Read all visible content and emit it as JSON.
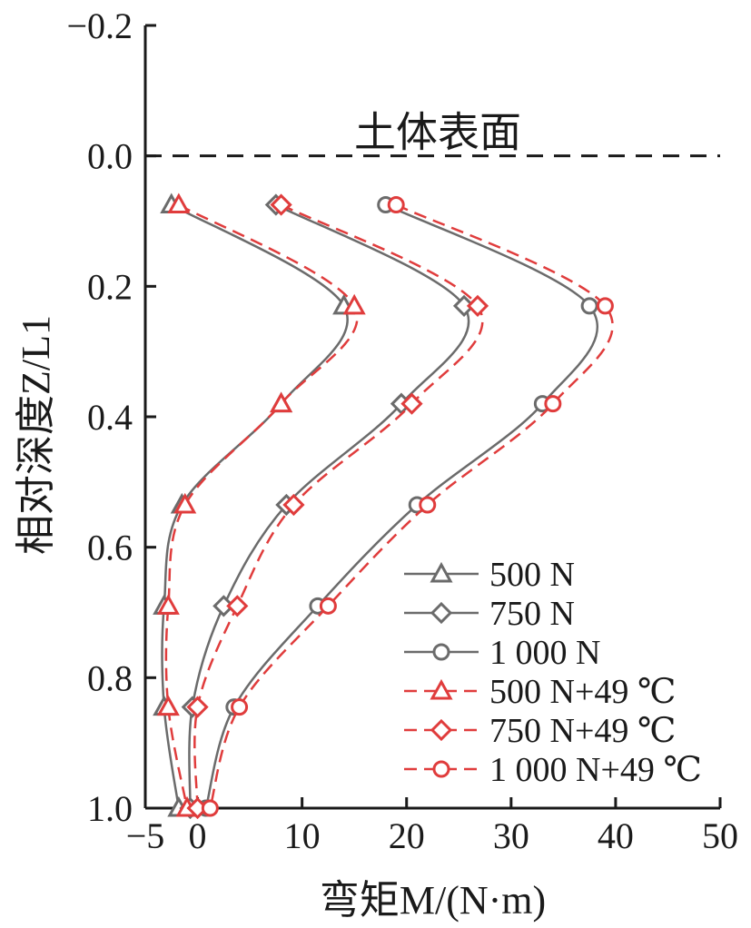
{
  "chart_data": {
    "type": "line",
    "xlabel": "弯矩M/(N·m)",
    "ylabel": "相对深度Z/L1",
    "xlim": [
      -5,
      50
    ],
    "ylim": [
      -0.2,
      1.0
    ],
    "y_inverted": true,
    "xticks": [
      "−5",
      "0",
      "10",
      "20",
      "30",
      "40",
      "50"
    ],
    "yticks": [
      "−0.2",
      "0.0",
      "0.2",
      "0.4",
      "0.6",
      "0.8",
      "1.0"
    ],
    "grid": false,
    "legend_position": "bottom-right",
    "annotations": [
      {
        "text": "土体表面",
        "y": 0.0,
        "line_style": "dashed"
      }
    ],
    "series": [
      {
        "name": "500 N",
        "color": "#6b6b6b",
        "line_style": "solid",
        "marker": "triangle",
        "x": [
          -2.5,
          14.0,
          8.0,
          -1.5,
          -3.2,
          -3.2,
          -1.8
        ],
        "y": [
          0.075,
          0.23,
          0.38,
          0.535,
          0.69,
          0.845,
          1.0
        ]
      },
      {
        "name": "750 N",
        "color": "#6b6b6b",
        "line_style": "solid",
        "marker": "diamond",
        "x": [
          7.5,
          25.5,
          19.5,
          8.5,
          2.5,
          -0.5,
          -0.7
        ],
        "y": [
          0.075,
          0.23,
          0.38,
          0.535,
          0.69,
          0.845,
          1.0
        ]
      },
      {
        "name": "1 000 N",
        "color": "#6b6b6b",
        "line_style": "solid",
        "marker": "circle",
        "x": [
          18.0,
          37.5,
          33.0,
          21.0,
          11.5,
          3.5,
          0.8
        ],
        "y": [
          0.075,
          0.23,
          0.38,
          0.535,
          0.69,
          0.845,
          1.0
        ]
      },
      {
        "name": "500 N+49 ℃",
        "color": "#e03c3c",
        "line_style": "dashed",
        "marker": "triangle",
        "x": [
          -1.8,
          15.0,
          8.0,
          -1.2,
          -2.8,
          -2.8,
          -1.0
        ],
        "y": [
          0.075,
          0.23,
          0.38,
          0.535,
          0.69,
          0.845,
          1.0
        ]
      },
      {
        "name": "750 N+49 ℃",
        "color": "#e03c3c",
        "line_style": "dashed",
        "marker": "diamond",
        "x": [
          8.0,
          26.8,
          20.5,
          9.2,
          3.8,
          0.0,
          0.0
        ],
        "y": [
          0.075,
          0.23,
          0.38,
          0.535,
          0.69,
          0.845,
          1.0
        ]
      },
      {
        "name": "1 000 N+49 ℃",
        "color": "#e03c3c",
        "line_style": "dashed",
        "marker": "circle",
        "x": [
          19.0,
          39.0,
          34.0,
          22.0,
          12.5,
          4.0,
          1.2
        ],
        "y": [
          0.075,
          0.23,
          0.38,
          0.535,
          0.69,
          0.845,
          1.0
        ]
      }
    ]
  }
}
